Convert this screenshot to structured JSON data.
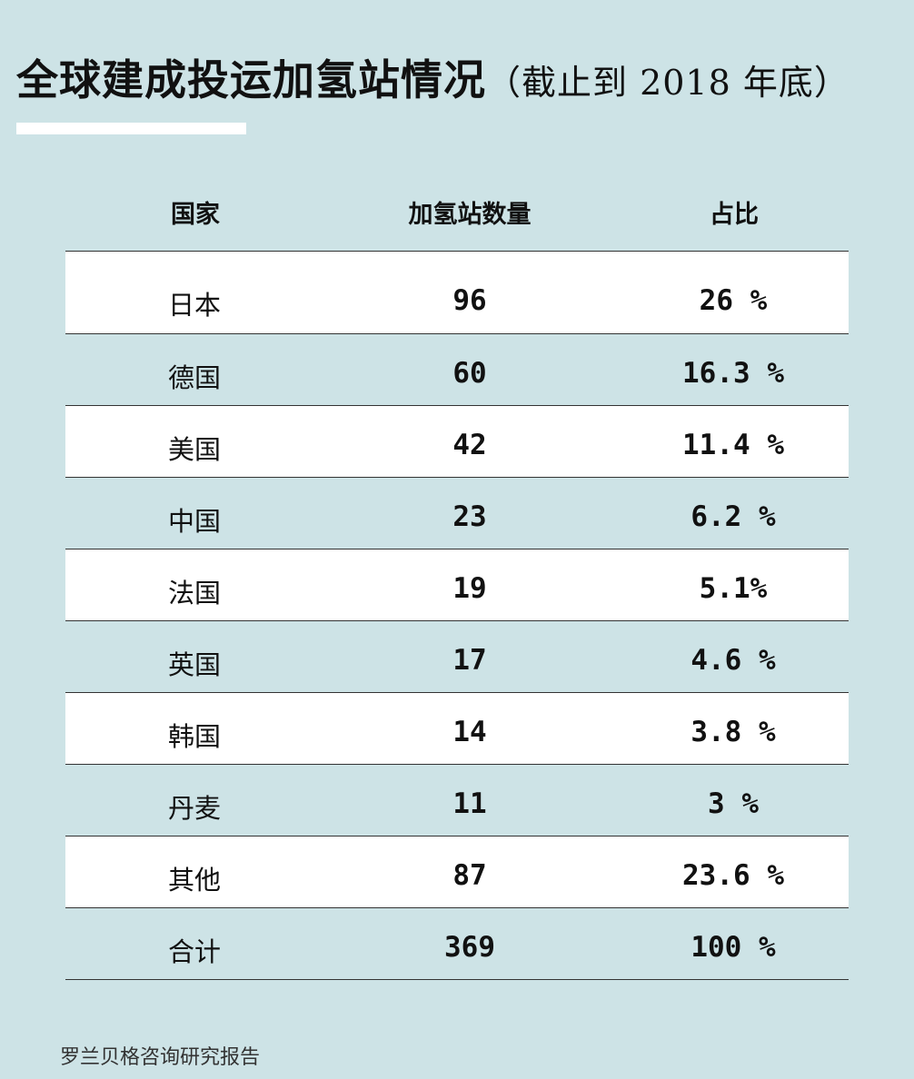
{
  "title": {
    "main": "全球建成投运加氢站情况",
    "sub": "（截止到 2018 年底）"
  },
  "table": {
    "headers": {
      "country": "国家",
      "count": "加氢站数量",
      "share": "占比"
    },
    "rows": [
      {
        "country": "日本",
        "count": "96",
        "share": "26 %"
      },
      {
        "country": "德国",
        "count": "60",
        "share": "16.3 %"
      },
      {
        "country": "美国",
        "count": "42",
        "share": "11.4 %"
      },
      {
        "country": "中国",
        "count": "23",
        "share": "6.2 %"
      },
      {
        "country": "法国",
        "count": "19",
        "share": "5.1%"
      },
      {
        "country": "英国",
        "count": "17",
        "share": "4.6 %"
      },
      {
        "country": "韩国",
        "count": "14",
        "share": "3.8 %"
      },
      {
        "country": "丹麦",
        "count": "11",
        "share": "3 %"
      },
      {
        "country": "其他",
        "count": "87",
        "share": "23.6 %"
      },
      {
        "country": "合计",
        "count": "369",
        "share": "100 %"
      }
    ]
  },
  "source": "罗兰贝格咨询研究报告",
  "colors": {
    "background": "#cde3e6",
    "row_highlight": "#ffffff",
    "text": "#111111"
  }
}
